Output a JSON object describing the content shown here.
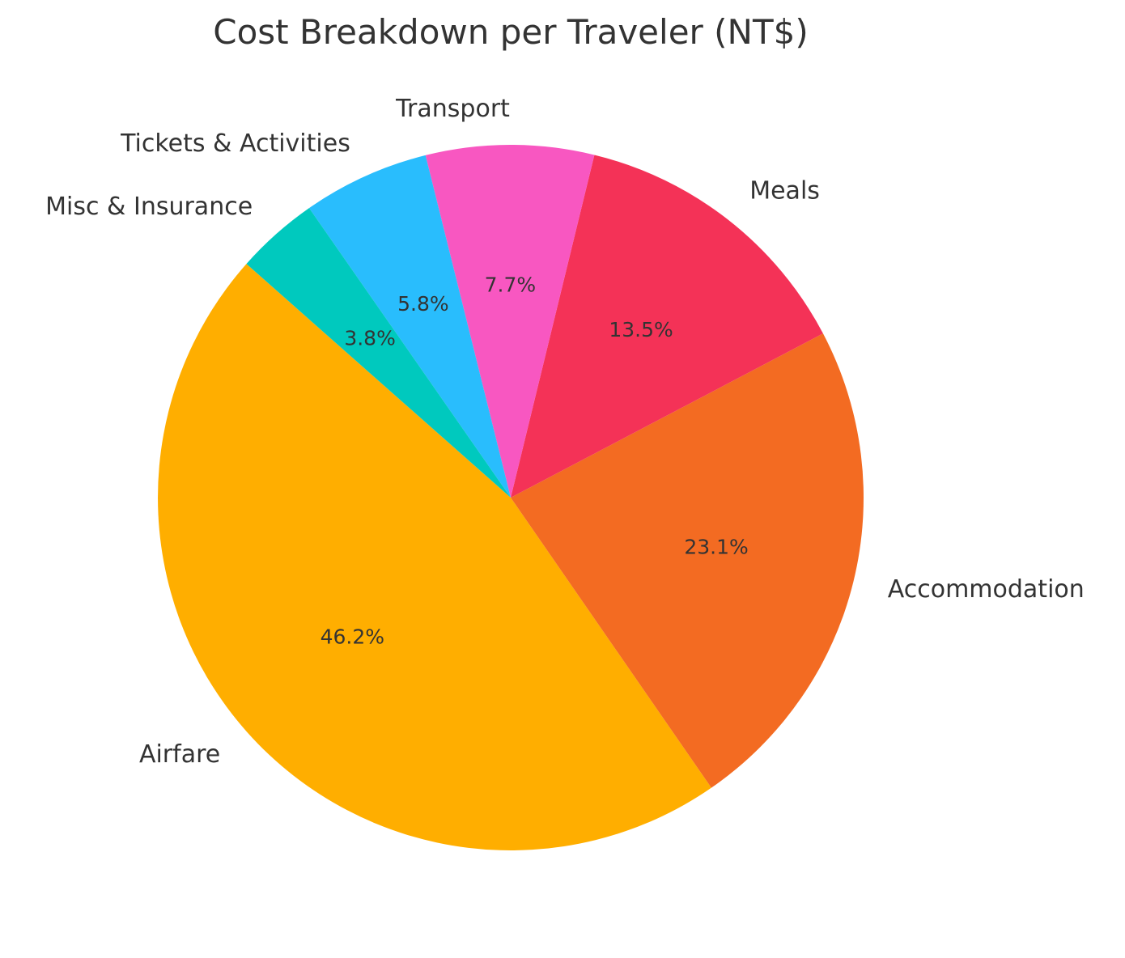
{
  "chart_data": {
    "type": "pie",
    "title": "Cost Breakdown per Traveler (NT$)",
    "start_angle_deg": 138.5,
    "direction": "counterclockwise",
    "slices": [
      {
        "label": "Airfare",
        "value": 46.2,
        "pct_label": "46.2%",
        "color": "#FFAE00"
      },
      {
        "label": "Accommodation",
        "value": 23.1,
        "pct_label": "23.1%",
        "color": "#F36B22"
      },
      {
        "label": "Meals",
        "value": 13.5,
        "pct_label": "13.5%",
        "color": "#F43257"
      },
      {
        "label": "Transport",
        "value": 7.7,
        "pct_label": "7.7%",
        "color": "#F857C1"
      },
      {
        "label": "Tickets & Activities",
        "value": 5.8,
        "pct_label": "5.8%",
        "color": "#29BDFD"
      },
      {
        "label": "Misc & Insurance",
        "value": 3.8,
        "pct_label": "3.8%",
        "color": "#00C9BE"
      }
    ]
  }
}
